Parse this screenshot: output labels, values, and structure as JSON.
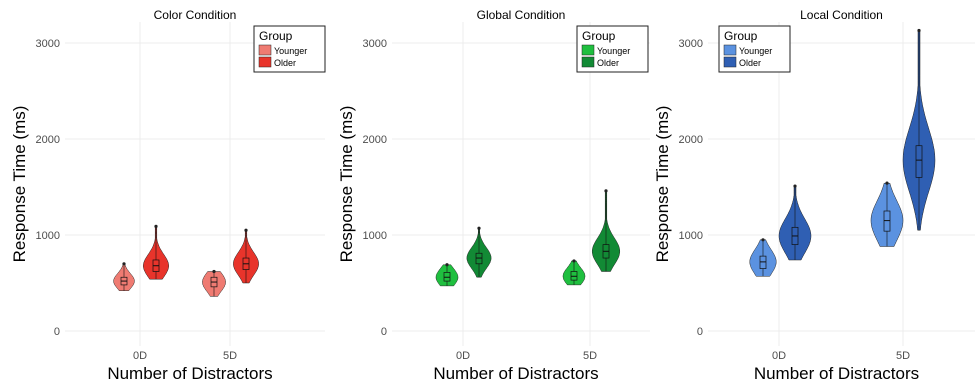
{
  "chart_data": [
    {
      "type": "violin",
      "title": "Color Condition",
      "xlabel": "Number of Distractors",
      "ylabel": "Response Time (ms)",
      "categories": [
        "0D",
        "5D"
      ],
      "ylim": [
        0,
        3200
      ],
      "yticks": [
        0,
        1000,
        2000,
        3000
      ],
      "grid": true,
      "legend": {
        "title": "Group",
        "position": "top-right"
      },
      "series": [
        {
          "name": "Younger",
          "color": "#ef7b72",
          "values": [
            {
              "category": "0D",
              "min": 420,
              "q1": 480,
              "median": 520,
              "q3": 560,
              "max": 700
            },
            {
              "category": "5D",
              "min": 360,
              "q1": 460,
              "median": 510,
              "q3": 560,
              "max": 620
            }
          ]
        },
        {
          "name": "Older",
          "color": "#e8342b",
          "values": [
            {
              "category": "0D",
              "min": 540,
              "q1": 620,
              "median": 680,
              "q3": 740,
              "max": 1090
            },
            {
              "category": "5D",
              "min": 500,
              "q1": 640,
              "median": 700,
              "q3": 760,
              "max": 1050
            }
          ]
        }
      ]
    },
    {
      "type": "violin",
      "title": "Global Condition",
      "xlabel": "Number of Distractors",
      "ylabel": "Response Time (ms)",
      "categories": [
        "0D",
        "5D"
      ],
      "ylim": [
        0,
        3200
      ],
      "yticks": [
        0,
        1000,
        2000,
        3000
      ],
      "grid": true,
      "legend": {
        "title": "Group",
        "position": "top-right"
      },
      "series": [
        {
          "name": "Younger",
          "color": "#1fbf3f",
          "values": [
            {
              "category": "0D",
              "min": 470,
              "q1": 520,
              "median": 560,
              "q3": 610,
              "max": 690
            },
            {
              "category": "5D",
              "min": 480,
              "q1": 530,
              "median": 570,
              "q3": 620,
              "max": 730
            }
          ]
        },
        {
          "name": "Older",
          "color": "#128a35",
          "values": [
            {
              "category": "0D",
              "min": 560,
              "q1": 700,
              "median": 760,
              "q3": 810,
              "max": 1070
            },
            {
              "category": "5D",
              "min": 620,
              "q1": 760,
              "median": 830,
              "q3": 900,
              "max": 1460
            }
          ]
        }
      ]
    },
    {
      "type": "violin",
      "title": "Local Condition",
      "xlabel": "Number of Distractors",
      "ylabel": "Response Time (ms)",
      "categories": [
        "0D",
        "5D"
      ],
      "ylim": [
        0,
        3200
      ],
      "yticks": [
        0,
        1000,
        2000,
        3000
      ],
      "grid": true,
      "legend": {
        "title": "Group",
        "position": "top-left"
      },
      "series": [
        {
          "name": "Younger",
          "color": "#5b92e0",
          "values": [
            {
              "category": "0D",
              "min": 570,
              "q1": 650,
              "median": 720,
              "q3": 780,
              "max": 950
            },
            {
              "category": "5D",
              "min": 880,
              "q1": 1040,
              "median": 1150,
              "q3": 1250,
              "max": 1540
            }
          ]
        },
        {
          "name": "Older",
          "color": "#2f5fb3",
          "values": [
            {
              "category": "0D",
              "min": 740,
              "q1": 900,
              "median": 990,
              "q3": 1080,
              "max": 1510
            },
            {
              "category": "5D",
              "min": 1050,
              "q1": 1600,
              "median": 1780,
              "q3": 1930,
              "max": 3130
            }
          ]
        }
      ]
    }
  ]
}
